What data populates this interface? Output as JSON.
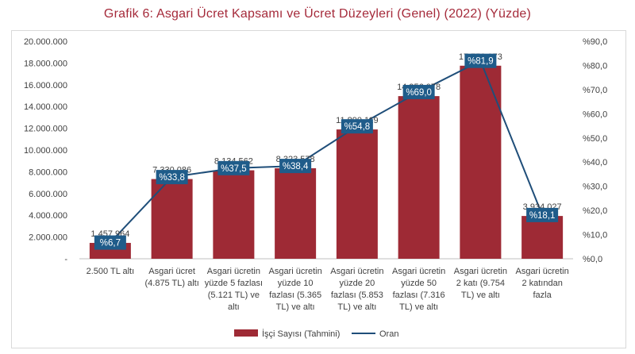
{
  "title": "Grafik 6: Asgari Ücret Kapsamı ve Ücret Düzeyleri (Genel) (2022) (Yüzde)",
  "colors": {
    "bar": "#9e2a35",
    "line": "#1f4e79",
    "label_box": "#1f5c8a",
    "title": "#a52a3a"
  },
  "chart_data": {
    "type": "bar",
    "title": "Grafik 6: Asgari Ücret Kapsamı ve Ücret Düzeyleri (Genel) (2022) (Yüzde)",
    "categories": [
      [
        "2.500 TL altı"
      ],
      [
        "Asgari ücret",
        "(4.875 TL) altı"
      ],
      [
        "Asgari ücretin",
        "yüzde 5 fazlası",
        "(5.121 TL) ve",
        "altı"
      ],
      [
        "Asgari ücretin",
        "yüzde 10",
        "fazlası (5.365",
        "TL) ve altı"
      ],
      [
        "Asgari ücretin",
        "yüzde 20",
        "fazlası (5.853",
        "TL) ve altı"
      ],
      [
        "Asgari ücretin",
        "yüzde 50",
        "fazlası (7.316",
        "TL) ve altı"
      ],
      [
        "Asgari ücretin",
        "2 katı (9.754",
        "TL) ve altı"
      ],
      [
        "Asgari ücretin",
        "2 katından",
        "fazla"
      ]
    ],
    "series": [
      {
        "name": "İşçi Sayısı (Tahmini)",
        "axis": "left",
        "values": [
          1457964,
          7330086,
          8134562,
          8323578,
          11890119,
          14956078,
          17752973,
          3934027
        ],
        "labels": [
          "1.457.964",
          "7.330.086",
          "8.134.562",
          "8.323.578",
          "11.890.119",
          "14.956.078",
          "17.752.973",
          "3.934.027"
        ]
      },
      {
        "name": "Oran",
        "axis": "right",
        "type": "line",
        "values": [
          6.7,
          33.8,
          37.5,
          38.4,
          54.8,
          69.0,
          81.9,
          18.1
        ],
        "labels": [
          "%6,7",
          "%33,8",
          "%37,5",
          "%38,4",
          "%54,8",
          "%69,0",
          "%81,9",
          "%18,1"
        ]
      }
    ],
    "y_left": {
      "min": 0,
      "max": 20000000,
      "ticks": [
        0,
        2000000,
        4000000,
        6000000,
        8000000,
        10000000,
        12000000,
        14000000,
        16000000,
        18000000,
        20000000
      ],
      "tick_labels": [
        "-",
        "2.000.000",
        "4.000.000",
        "6.000.000",
        "8.000.000",
        "10.000.000",
        "12.000.000",
        "14.000.000",
        "16.000.000",
        "18.000.000",
        "20.000.000"
      ]
    },
    "y_right": {
      "min": 0,
      "max": 90,
      "ticks": [
        0,
        10,
        20,
        30,
        40,
        50,
        60,
        70,
        80,
        90
      ],
      "tick_labels": [
        "%0,0",
        "%10,0",
        "%20,0",
        "%30,0",
        "%40,0",
        "%50,0",
        "%60,0",
        "%70,0",
        "%80,0",
        "%90,0"
      ]
    },
    "grid": false,
    "legend": "bottom"
  }
}
